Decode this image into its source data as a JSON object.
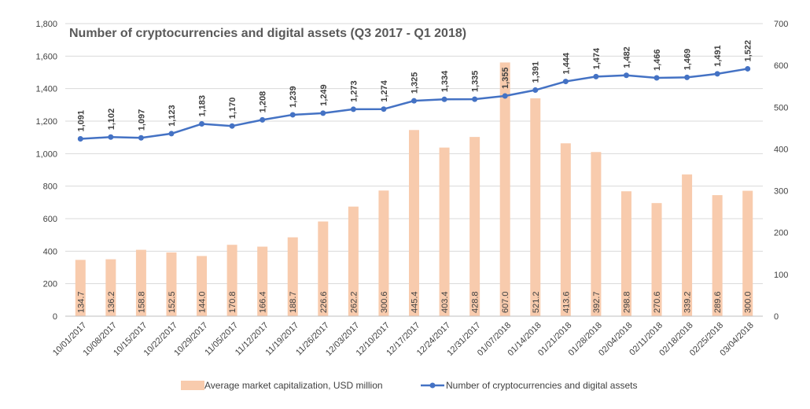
{
  "chart_data": {
    "type": "bar",
    "title": "Number of cryptocurrencies and digital assets (Q3 2017 - Q1 2018)",
    "categories": [
      "10/01/2017",
      "10/08/2017",
      "10/15/2017",
      "10/22/2017",
      "10/29/2017",
      "11/05/2017",
      "11/12/2017",
      "11/19/2017",
      "11/26/2017",
      "12/03/2017",
      "12/10/2017",
      "12/17/2017",
      "12/24/2017",
      "12/31/2017",
      "01/07/2018",
      "01/14/2018",
      "01/21/2018",
      "01/28/2018",
      "02/04/2018",
      "02/11/2018",
      "02/18/2018",
      "02/25/2018",
      "03/04/2018"
    ],
    "series": [
      {
        "name": "Average market capitalization, USD million",
        "type": "bar",
        "axis": "right",
        "color": "#F8CBAD",
        "values": [
          134.7,
          136.2,
          158.8,
          152.5,
          144.0,
          170.8,
          166.4,
          188.7,
          226.6,
          262.2,
          300.6,
          445.4,
          403.4,
          428.8,
          607.0,
          521.2,
          413.6,
          392.7,
          298.8,
          270.6,
          339.2,
          289.6,
          300.0
        ],
        "labels": [
          "134.7",
          "136.2",
          "158.8",
          "152.5",
          "144.0",
          "170.8",
          "166.4",
          "188.7",
          "226.6",
          "262.2",
          "300.6",
          "445.4",
          "403.4",
          "428.8",
          "607.0",
          "521.2",
          "413.6",
          "392.7",
          "298.8",
          "270.6",
          "339.2",
          "289.6",
          "300.0"
        ]
      },
      {
        "name": "Number of cryptocurrencies and digital assets",
        "type": "line",
        "axis": "left",
        "color": "#4472C4",
        "values": [
          1091,
          1102,
          1097,
          1123,
          1183,
          1170,
          1208,
          1239,
          1249,
          1273,
          1274,
          1325,
          1334,
          1335,
          1355,
          1391,
          1444,
          1474,
          1482,
          1466,
          1469,
          1491,
          1522
        ],
        "labels": [
          "1,091",
          "1,102",
          "1,097",
          "1,123",
          "1,183",
          "1,170",
          "1,208",
          "1,239",
          "1,249",
          "1,273",
          "1,274",
          "1,325",
          "1,334",
          "1,335",
          "1,355",
          "1,391",
          "1,444",
          "1,474",
          "1,482",
          "1,466",
          "1,469",
          "1,491",
          "1,522"
        ]
      }
    ],
    "ylim_left": [
      0,
      1800
    ],
    "yticks_left": [
      0,
      200,
      400,
      600,
      800,
      1000,
      1200,
      1400,
      1600,
      1800
    ],
    "ytick_labels_left": [
      "0",
      "200",
      "400",
      "600",
      "800",
      "1,000",
      "1,200",
      "1,400",
      "1,600",
      "1,800"
    ],
    "ylim_right": [
      0,
      700
    ],
    "yticks_right": [
      0,
      100,
      200,
      300,
      400,
      500,
      600,
      700
    ],
    "ytick_labels_right": [
      "0",
      "100",
      "200",
      "300",
      "400",
      "500",
      "600",
      "700"
    ],
    "grid": true,
    "legend_position": "bottom"
  }
}
